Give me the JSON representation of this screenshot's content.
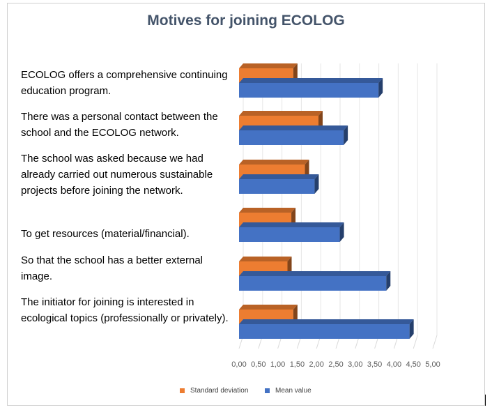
{
  "chart_data": {
    "type": "bar",
    "orientation": "horizontal",
    "title": "Motives for joining ECOLOG",
    "categories": [
      "ECOLOG offers a comprehensive continuing education program.",
      "There was a personal contact between the school and the ECOLOG network.",
      "The school was asked because we had already carried out numerous sustainable projects before joining the network.",
      "To get resources (material/financial).",
      "So that the school has a better external image.",
      "The initiator for joining is interested in ecological topics (professionally or privately)."
    ],
    "series": [
      {
        "name": "Standard deviation",
        "color": "#ed7d31",
        "values": [
          1.4,
          2.05,
          1.7,
          1.35,
          1.25,
          1.4
        ]
      },
      {
        "name": "Mean value",
        "color": "#4472c4",
        "values": [
          3.6,
          2.7,
          1.95,
          2.6,
          3.8,
          4.4
        ]
      }
    ],
    "xlim": [
      0,
      5
    ],
    "xticks": [
      "0,00",
      "0,50",
      "1,00",
      "1,50",
      "2,00",
      "2,50",
      "3,00",
      "3,50",
      "4,00",
      "4,50",
      "5,00"
    ],
    "grid": true,
    "legend_position": "bottom"
  }
}
